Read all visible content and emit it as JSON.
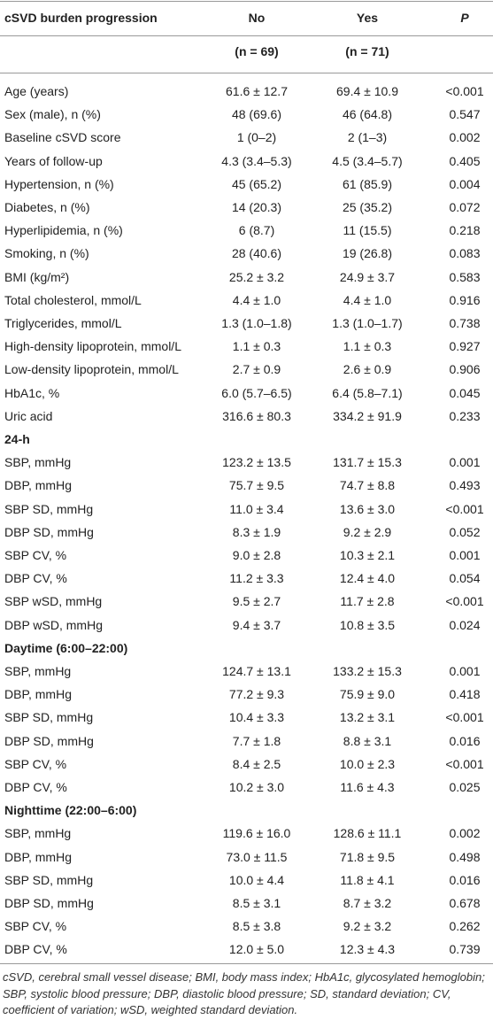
{
  "table": {
    "header": [
      "cSVD burden progression",
      "No",
      "Yes",
      "P"
    ],
    "subheader": [
      "(n = 69)",
      "(n = 71)"
    ],
    "rows": [
      [
        "Age (years)",
        "61.6 ± 12.7",
        "69.4 ± 10.9",
        "<0.001"
      ],
      [
        "Sex (male), n (%)",
        "48 (69.6)",
        "46 (64.8)",
        "0.547"
      ],
      [
        "Baseline cSVD score",
        "1 (0–2)",
        "2 (1–3)",
        "0.002"
      ],
      [
        "Years of follow-up",
        "4.3 (3.4–5.3)",
        "4.5 (3.4–5.7)",
        "0.405"
      ],
      [
        "Hypertension, n (%)",
        "45 (65.2)",
        "61 (85.9)",
        "0.004"
      ],
      [
        "Diabetes, n (%)",
        "14 (20.3)",
        "25 (35.2)",
        "0.072"
      ],
      [
        "Hyperlipidemia, n (%)",
        "6 (8.7)",
        "11 (15.5)",
        "0.218"
      ],
      [
        "Smoking, n (%)",
        "28 (40.6)",
        "19 (26.8)",
        "0.083"
      ],
      [
        "BMI (kg/m²)",
        "25.2 ± 3.2",
        "24.9 ± 3.7",
        "0.583"
      ],
      [
        "Total cholesterol, mmol/L",
        "4.4 ± 1.0",
        "4.4 ± 1.0",
        "0.916"
      ],
      [
        "Triglycerides, mmol/L",
        "1.3 (1.0–1.8)",
        "1.3 (1.0–1.7)",
        "0.738"
      ],
      [
        "High-density lipoprotein, mmol/L",
        "1.1 ± 0.3",
        "1.1 ± 0.3",
        "0.927"
      ],
      [
        "Low-density lipoprotein, mmol/L",
        "2.7 ± 0.9",
        "2.6 ± 0.9",
        "0.906"
      ],
      [
        "HbA1c, %",
        "6.0 (5.7–6.5)",
        "6.4 (5.8–7.1)",
        "0.045"
      ],
      [
        "Uric acid",
        "316.6 ± 80.3",
        "334.2 ± 91.9",
        "0.233"
      ],
      [
        "24-h"
      ],
      [
        "SBP, mmHg",
        "123.2 ± 13.5",
        "131.7 ± 15.3",
        "0.001"
      ],
      [
        "DBP, mmHg",
        "75.7 ± 9.5",
        "74.7 ± 8.8",
        "0.493"
      ],
      [
        "SBP SD, mmHg",
        "11.0 ± 3.4",
        "13.6 ± 3.0",
        "<0.001"
      ],
      [
        "DBP SD, mmHg",
        "8.3 ± 1.9",
        "9.2 ± 2.9",
        "0.052"
      ],
      [
        "SBP CV, %",
        "9.0 ± 2.8",
        "10.3 ± 2.1",
        "0.001"
      ],
      [
        "DBP CV, %",
        "11.2 ± 3.3",
        "12.4 ± 4.0",
        "0.054"
      ],
      [
        "SBP wSD, mmHg",
        "9.5 ± 2.7",
        "11.7 ± 2.8",
        "<0.001"
      ],
      [
        "DBP wSD, mmHg",
        "9.4 ± 3.7",
        "10.8 ± 3.5",
        "0.024"
      ],
      [
        "Daytime (6:00–22:00)"
      ],
      [
        "SBP, mmHg",
        "124.7 ± 13.1",
        "133.2 ± 15.3",
        "0.001"
      ],
      [
        "DBP, mmHg",
        "77.2 ± 9.3",
        "75.9 ± 9.0",
        "0.418"
      ],
      [
        "SBP SD, mmHg",
        "10.4 ± 3.3",
        "13.2 ± 3.1",
        "<0.001"
      ],
      [
        "DBP SD, mmHg",
        "7.7 ± 1.8",
        "8.8 ± 3.1",
        "0.016"
      ],
      [
        "SBP CV, %",
        "8.4 ± 2.5",
        "10.0 ± 2.3",
        "<0.001"
      ],
      [
        "DBP CV, %",
        "10.2 ± 3.0",
        "11.6 ± 4.3",
        "0.025"
      ],
      [
        "Nighttime (22:00–6:00)"
      ],
      [
        "SBP, mmHg",
        "119.6 ± 16.0",
        "128.6 ± 11.1",
        "0.002"
      ],
      [
        "DBP, mmHg",
        "73.0 ± 11.5",
        "71.8 ± 9.5",
        "0.498"
      ],
      [
        "SBP SD, mmHg",
        "10.0 ± 4.4",
        "11.8 ± 4.1",
        "0.016"
      ],
      [
        "DBP SD, mmHg",
        "8.5 ± 3.1",
        "8.7 ± 3.2",
        "0.678"
      ],
      [
        "SBP CV, %",
        "8.5 ± 3.8",
        "9.2 ± 3.2",
        "0.262"
      ],
      [
        "DBP CV, %",
        "12.0 ± 5.0",
        "12.3 ± 4.3",
        "0.739"
      ]
    ],
    "footnote": "cSVD, cerebral small vessel disease; BMI, body mass index; HbA1c, glycosylated hemoglobin; SBP, systolic blood pressure; DBP, diastolic blood pressure; SD, standard deviation; CV, coefficient of variation; wSD, weighted standard deviation."
  }
}
